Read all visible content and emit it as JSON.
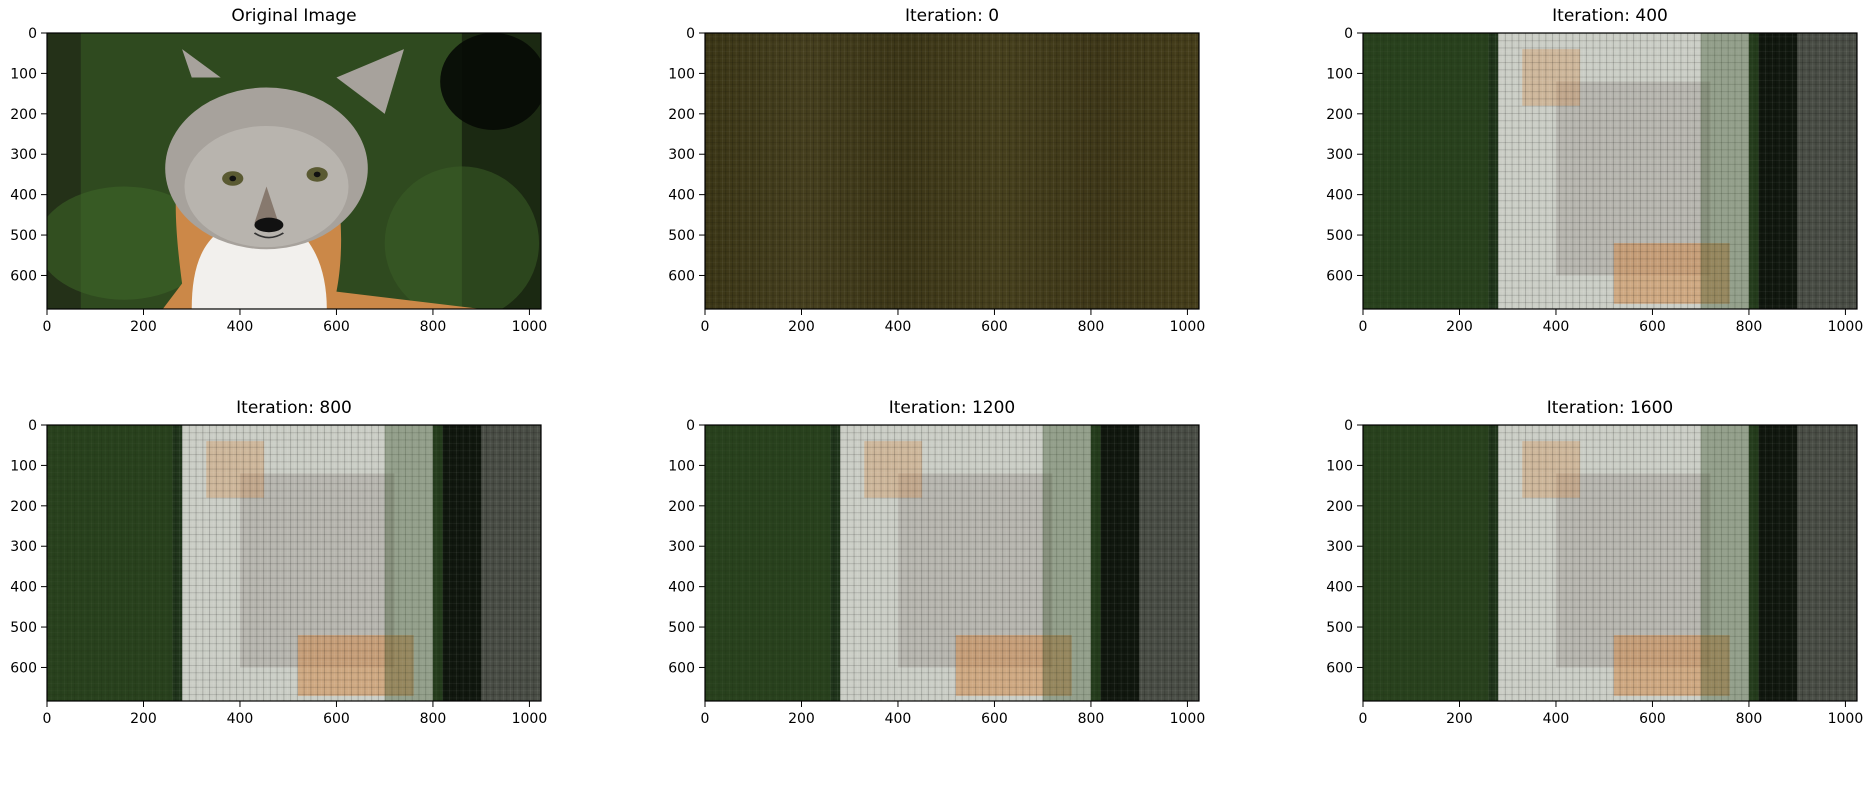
{
  "figure": {
    "panels": [
      {
        "title": "Original Image",
        "kind": "fox"
      },
      {
        "title": "Iteration: 0",
        "kind": "flat"
      },
      {
        "title": "Iteration: 400",
        "kind": "recon"
      },
      {
        "title": "Iteration: 800",
        "kind": "recon"
      },
      {
        "title": "Iteration: 1200",
        "kind": "recon"
      },
      {
        "title": "Iteration: 1600",
        "kind": "recon"
      }
    ]
  },
  "chart_data": {
    "type": "image-grid",
    "rows": 2,
    "cols": 3,
    "xlim": [
      0,
      1024
    ],
    "ylim": [
      683,
      0
    ],
    "x_ticks": [
      0,
      200,
      400,
      600,
      800,
      1000
    ],
    "y_ticks": [
      0,
      100,
      200,
      300,
      400,
      500,
      600
    ],
    "colors": {
      "forest": "#2f4a1f",
      "fur_gray": "#a7a29c",
      "fur_orange": "#d48b4b",
      "white": "#f2f0ed",
      "dark": "#0e120c",
      "flat_olive": "#463f1a"
    }
  }
}
